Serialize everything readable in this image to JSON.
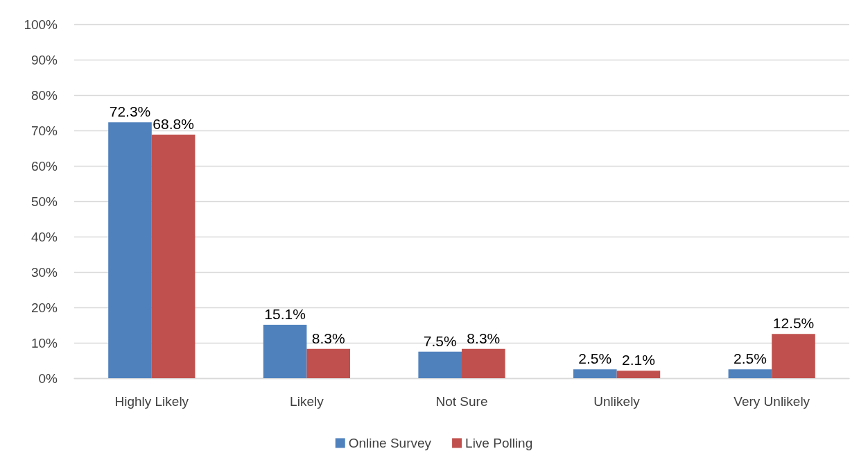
{
  "chart_data": {
    "type": "bar",
    "categories": [
      "Highly Likely",
      "Likely",
      "Not Sure",
      "Unlikely",
      "Very Unlikely"
    ],
    "series": [
      {
        "name": "Online Survey",
        "color": "#4f81bd",
        "values": [
          72.3,
          15.1,
          7.5,
          2.5,
          2.5
        ],
        "value_labels": [
          "72.3%",
          "15.1%",
          "7.5%",
          "2.5%",
          "2.5%"
        ]
      },
      {
        "name": "Live Polling",
        "color": "#c0504d",
        "values": [
          68.8,
          8.3,
          8.3,
          2.1,
          12.5
        ],
        "value_labels": [
          "68.8%",
          "8.3%",
          "8.3%",
          "2.1%",
          "12.5%"
        ]
      }
    ],
    "ylim": [
      0,
      100
    ],
    "yticks": [
      {
        "value": 0,
        "label": "0%"
      },
      {
        "value": 10,
        "label": "10%"
      },
      {
        "value": 20,
        "label": "20%"
      },
      {
        "value": 30,
        "label": "30%"
      },
      {
        "value": 40,
        "label": "40%"
      },
      {
        "value": 50,
        "label": "50%"
      },
      {
        "value": 60,
        "label": "60%"
      },
      {
        "value": 70,
        "label": "70%"
      },
      {
        "value": 80,
        "label": "80%"
      },
      {
        "value": 90,
        "label": "90%"
      },
      {
        "value": 100,
        "label": "100%"
      }
    ],
    "grid": "y",
    "legend": "bottom"
  }
}
